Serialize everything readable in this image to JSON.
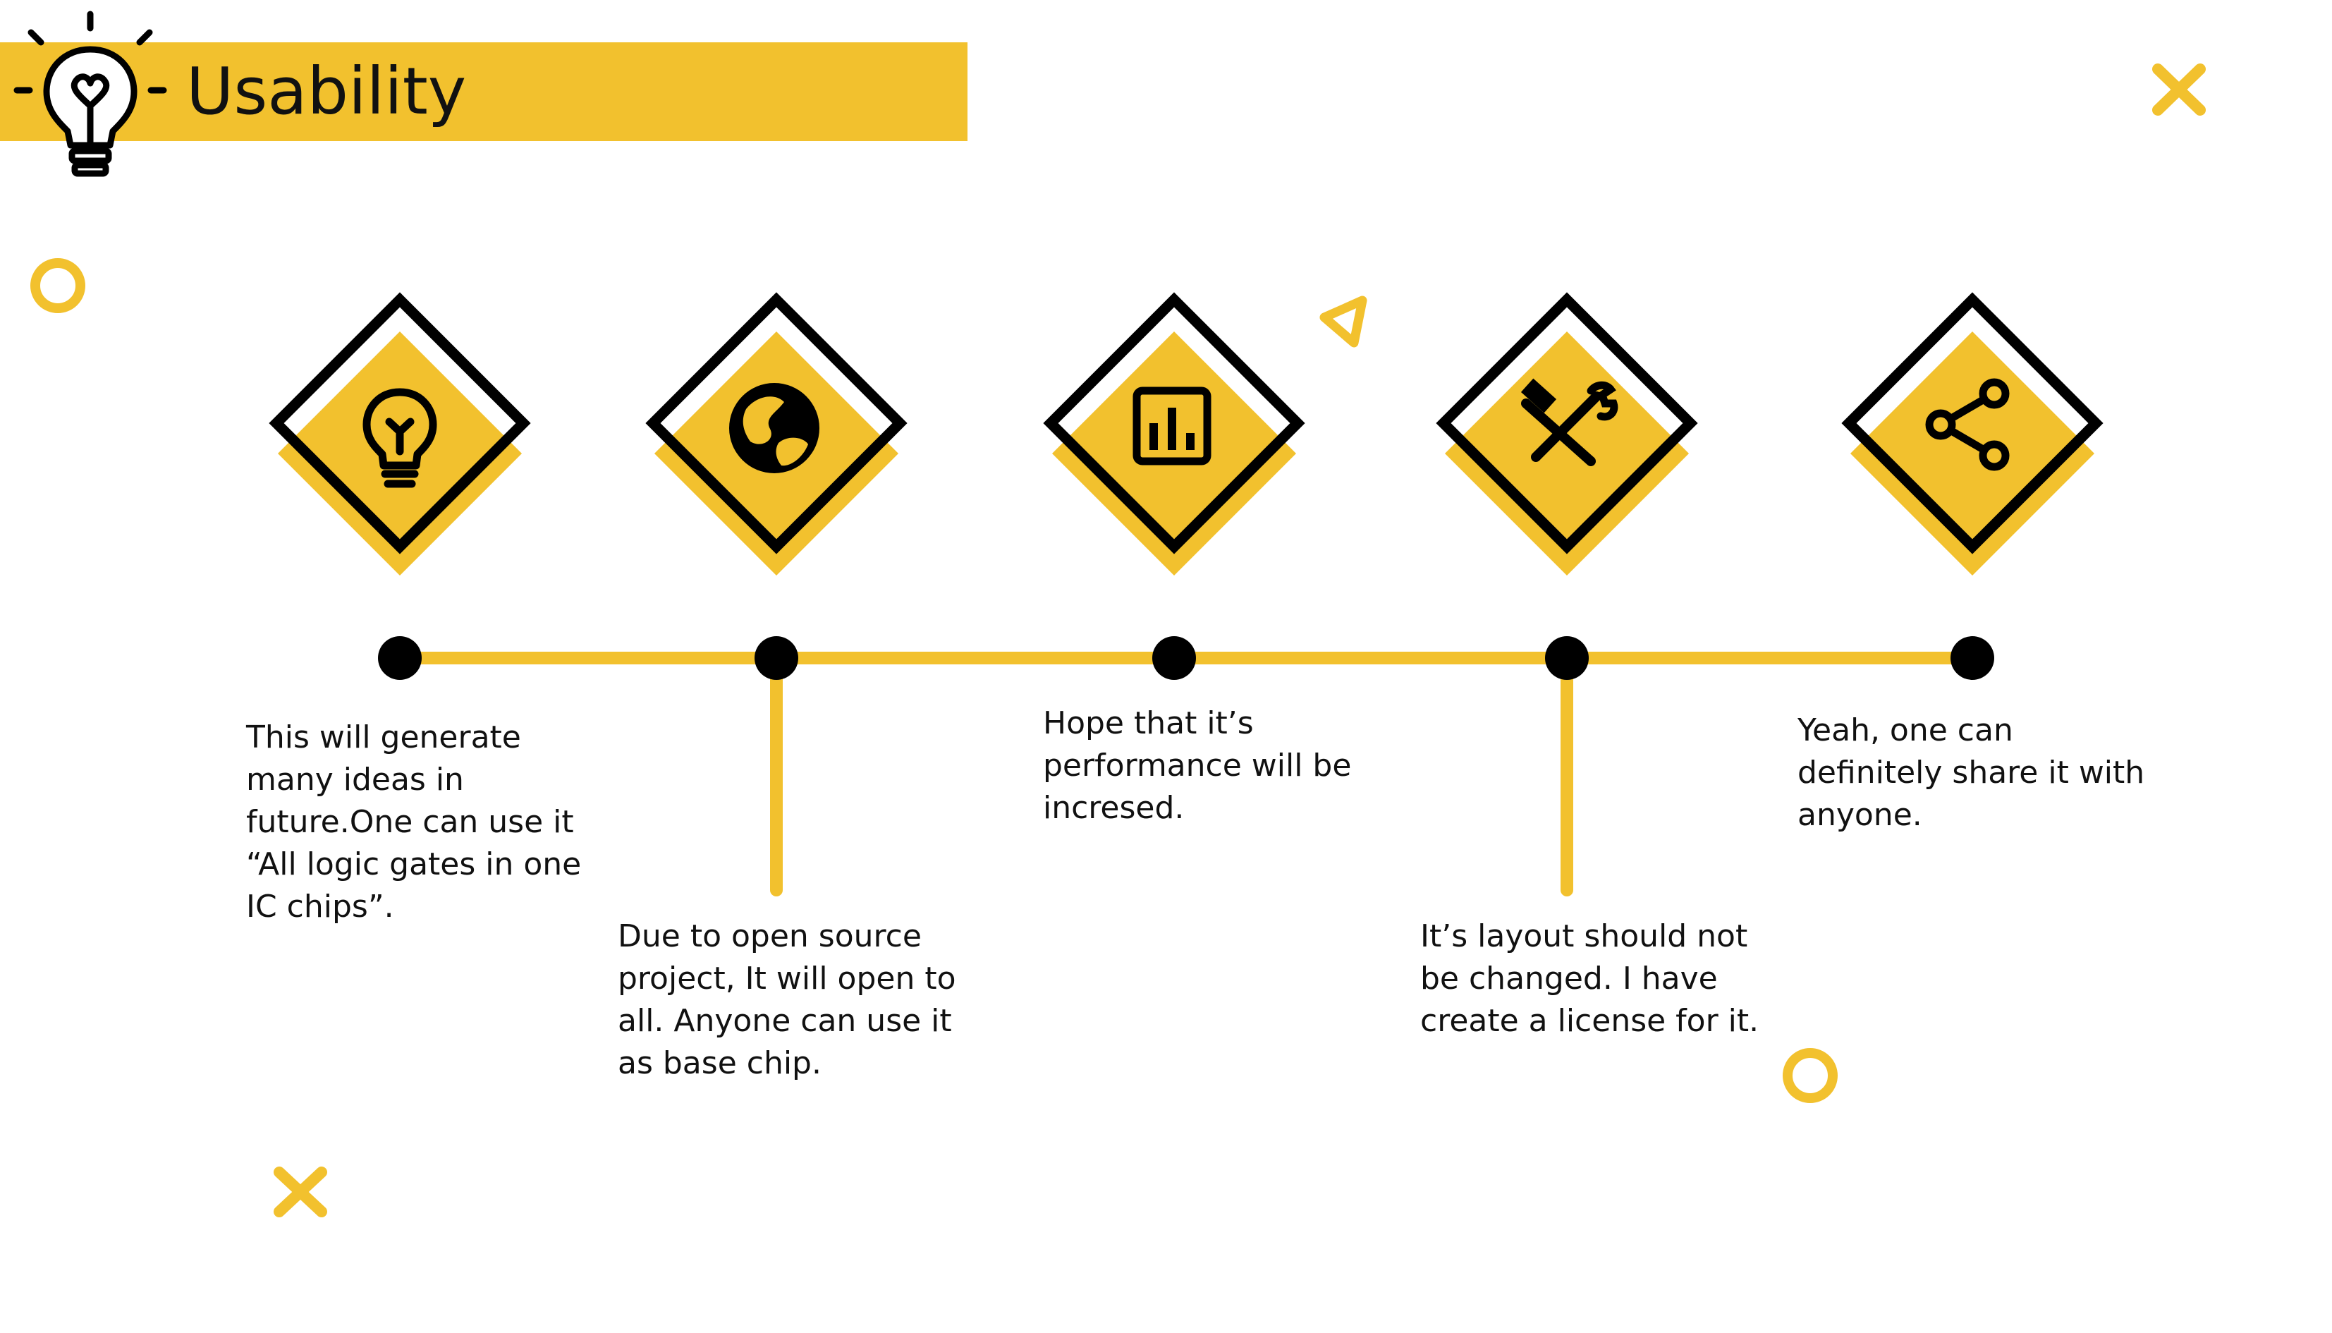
{
  "slide": {
    "title": "Usability",
    "title_icon": "lightbulb-heart-icon",
    "accent_color": "#F2C12E",
    "ink_color": "#000000"
  },
  "decorations": [
    "x-mark-icon",
    "ring-icon",
    "triangle-outline-icon",
    "ring-icon",
    "x-mark-icon"
  ],
  "timeline": {
    "steps": [
      {
        "icon": "lightbulb-icon",
        "text": "This will generate\nmany ideas in\nfuture.One can use it\n“All logic gates in one\nIC chips”."
      },
      {
        "icon": "globe-icon",
        "text": "Due to open source\nproject, It will open to\nall. Anyone can use it\nas base chip."
      },
      {
        "icon": "bar-chart-icon",
        "text": "Hope that it’s\nperformance will be\nincresed."
      },
      {
        "icon": "hammer-wrench-icon",
        "text": "It’s layout should not\nbe changed. I have\ncreate a license for it."
      },
      {
        "icon": "share-icon",
        "text": "Yeah, one can\ndefinitely share it with\nanyone."
      }
    ]
  }
}
